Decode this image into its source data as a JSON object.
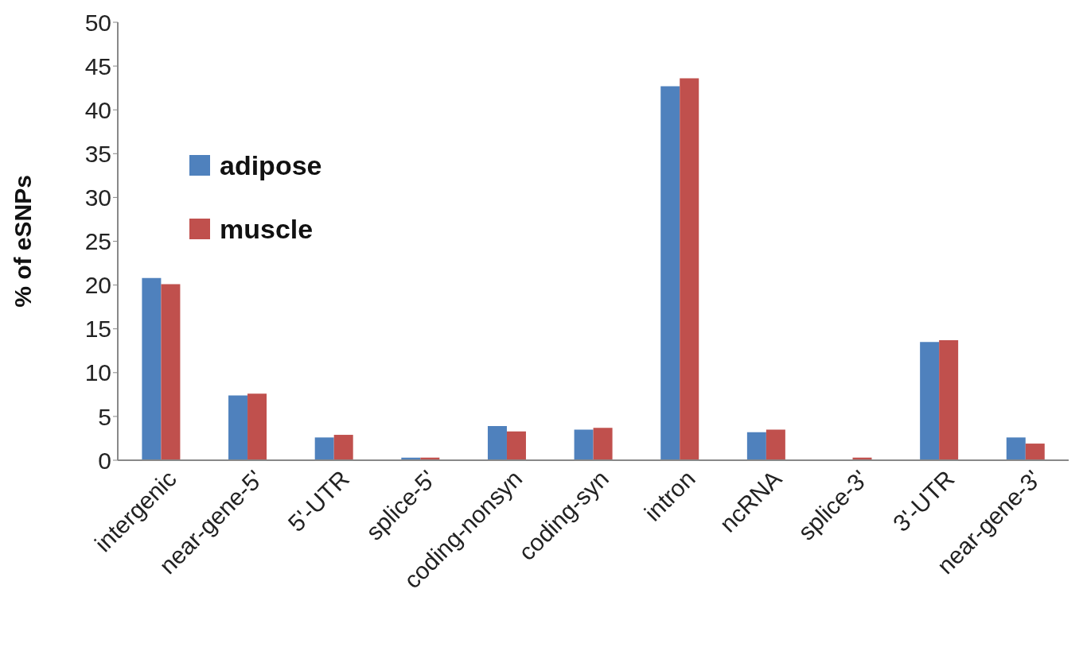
{
  "chart_data": {
    "type": "bar",
    "ylabel": "% of eSNPs",
    "categories": [
      "intergenic",
      "near-gene-5'",
      "5'-UTR",
      "splice-5'",
      "coding-nonsyn",
      "coding-syn",
      "intron",
      "ncRNA",
      "splice-3'",
      "3'-UTR",
      "near-gene-3'"
    ],
    "series": [
      {
        "name": "adipose",
        "color": "#4f81bd",
        "values": [
          20.8,
          7.4,
          2.6,
          0.3,
          3.9,
          3.5,
          42.7,
          3.2,
          0,
          13.5,
          2.6
        ]
      },
      {
        "name": "muscle",
        "color": "#c0504d",
        "values": [
          20.1,
          7.6,
          2.9,
          0.3,
          3.3,
          3.7,
          43.6,
          3.5,
          0.3,
          13.7,
          1.9
        ]
      }
    ],
    "ylim": [
      0,
      50
    ],
    "yticks": [
      0,
      5,
      10,
      15,
      20,
      25,
      30,
      35,
      40,
      45,
      50
    ],
    "grid": false,
    "legend": "top left"
  }
}
